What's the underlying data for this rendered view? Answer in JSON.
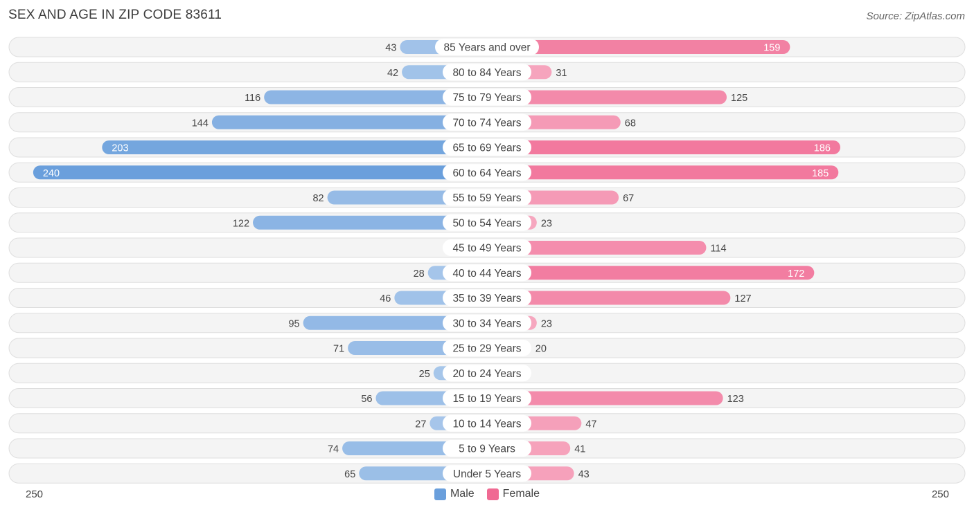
{
  "chart_data": {
    "type": "bar",
    "orientation": "horizontal-diverging",
    "title": "SEX AND AGE IN ZIP CODE 83611",
    "source": "Source: ZipAtlas.com",
    "categories": [
      "85 Years and over",
      "80 to 84 Years",
      "75 to 79 Years",
      "70 to 74 Years",
      "65 to 69 Years",
      "60 to 64 Years",
      "55 to 59 Years",
      "50 to 54 Years",
      "45 to 49 Years",
      "40 to 44 Years",
      "35 to 39 Years",
      "30 to 34 Years",
      "25 to 29 Years",
      "20 to 24 Years",
      "15 to 19 Years",
      "10 to 14 Years",
      "5 to 9 Years",
      "Under 5 Years"
    ],
    "series": [
      {
        "name": "Male",
        "color": "#6a9fdc",
        "values": [
          43,
          42,
          116,
          144,
          203,
          240,
          82,
          122,
          8,
          28,
          46,
          95,
          71,
          25,
          56,
          27,
          74,
          65
        ]
      },
      {
        "name": "Female",
        "color": "#f06a93",
        "values": [
          159,
          31,
          125,
          68,
          186,
          185,
          67,
          23,
          114,
          172,
          127,
          23,
          20,
          0,
          123,
          47,
          41,
          43
        ]
      }
    ],
    "axis_min_label": "250",
    "axis_max_label": "250",
    "xlim": [
      -250,
      250
    ],
    "legend_position": "bottom-center"
  }
}
